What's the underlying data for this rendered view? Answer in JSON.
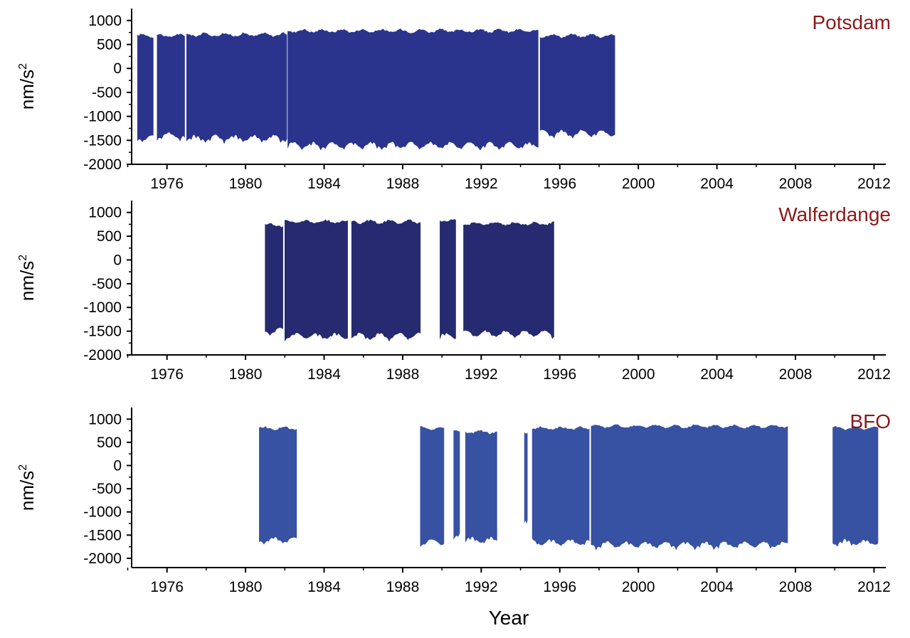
{
  "figure": {
    "xlabel": "Year",
    "ylabel_main": "nm/s",
    "ylabel_sup": "2"
  },
  "chart_data": [
    {
      "type": "area",
      "title": "Potsdam",
      "title_color": "#8b1a1a",
      "color": "#2b348c",
      "xlabel": "",
      "ylabel": "nm/s²",
      "xlim": [
        1974.2,
        2012.6
      ],
      "ylim": [
        -2000,
        1250
      ],
      "x_ticks": [
        1976,
        1980,
        1984,
        1988,
        1992,
        1996,
        2000,
        2004,
        2008,
        2012
      ],
      "y_ticks": [
        1000,
        500,
        0,
        -500,
        -1000,
        -1500,
        -2000
      ],
      "segments": [
        {
          "start": 1974.5,
          "end": 1975.3,
          "upper": 700,
          "lower": -1500
        },
        {
          "start": 1975.5,
          "end": 1976.9,
          "upper": 700,
          "lower": -1450
        },
        {
          "start": 1977.0,
          "end": 1982.1,
          "upper": 720,
          "lower": -1500
        },
        {
          "start": 1982.15,
          "end": 1994.9,
          "upper": 800,
          "lower": -1650
        },
        {
          "start": 1995.0,
          "end": 1998.8,
          "upper": 700,
          "lower": -1400
        }
      ]
    },
    {
      "type": "area",
      "title": "Walferdange",
      "title_color": "#8b1a1a",
      "color": "#262a70",
      "xlabel": "",
      "ylabel": "nm/s²",
      "xlim": [
        1974.2,
        2012.6
      ],
      "ylim": [
        -2000,
        1250
      ],
      "x_ticks": [
        1976,
        1980,
        1984,
        1988,
        1992,
        1996,
        2000,
        2004,
        2008,
        2012
      ],
      "y_ticks": [
        1000,
        500,
        0,
        -500,
        -1000,
        -1500,
        -2000
      ],
      "segments": [
        {
          "start": 1981.0,
          "end": 1981.9,
          "upper": 750,
          "lower": -1550
        },
        {
          "start": 1982.0,
          "end": 1985.2,
          "upper": 820,
          "lower": -1650
        },
        {
          "start": 1985.4,
          "end": 1988.9,
          "upper": 820,
          "lower": -1650
        },
        {
          "start": 1989.9,
          "end": 1990.7,
          "upper": 850,
          "lower": -1650
        },
        {
          "start": 1991.1,
          "end": 1995.7,
          "upper": 780,
          "lower": -1600
        }
      ]
    },
    {
      "type": "area",
      "title": "BFO",
      "title_color": "#8b1a1a",
      "color": "#3751a3",
      "xlabel": "Year",
      "ylabel": "nm/s²",
      "xlim": [
        1974.2,
        2012.6
      ],
      "ylim": [
        -2200,
        1250
      ],
      "x_ticks": [
        1976,
        1980,
        1984,
        1988,
        1992,
        1996,
        2000,
        2004,
        2008,
        2012
      ],
      "y_ticks": [
        1000,
        500,
        0,
        -500,
        -1000,
        -1500,
        -2000
      ],
      "segments": [
        {
          "start": 1980.7,
          "end": 1982.6,
          "upper": 820,
          "lower": -1650
        },
        {
          "start": 1988.9,
          "end": 1990.1,
          "upper": 820,
          "lower": -1700
        },
        {
          "start": 1990.6,
          "end": 1990.9,
          "upper": 760,
          "lower": -1550
        },
        {
          "start": 1991.2,
          "end": 1992.8,
          "upper": 740,
          "lower": -1650
        },
        {
          "start": 1994.2,
          "end": 1994.35,
          "upper": 740,
          "lower": -1300
        },
        {
          "start": 1994.6,
          "end": 1997.5,
          "upper": 820,
          "lower": -1700
        },
        {
          "start": 1997.6,
          "end": 2007.6,
          "upper": 860,
          "lower": -1750
        },
        {
          "start": 2009.9,
          "end": 2012.2,
          "upper": 820,
          "lower": -1700
        }
      ]
    }
  ]
}
